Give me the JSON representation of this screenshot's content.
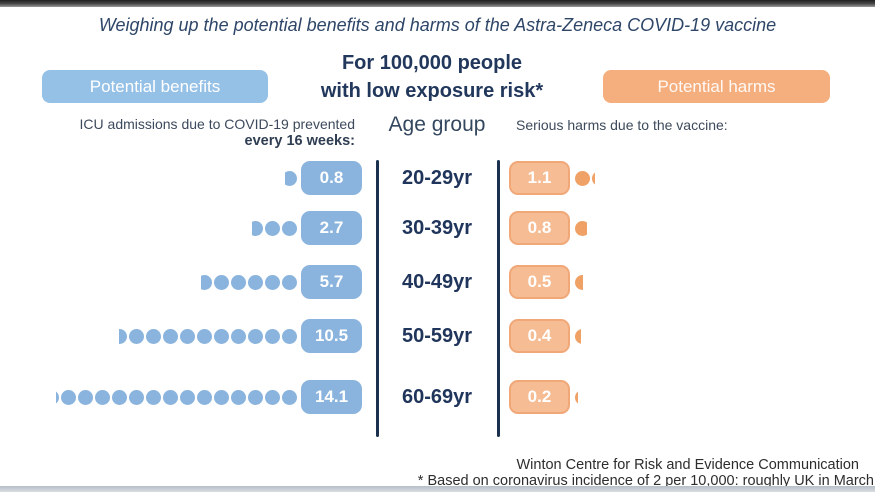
{
  "title": "Weighing up the potential benefits and harms of the Astra-Zeneca COVID-19 vaccine",
  "center_heading": {
    "line1": "For 100,000 people",
    "line2": "with low exposure risk*"
  },
  "legend": {
    "benefits_label": "Potential benefits",
    "harms_label": "Potential harms"
  },
  "columns": {
    "benefits_header_line1": "ICU admissions due to COVID-19 prevented",
    "benefits_header_line2": "every 16 weeks:",
    "age_header": "Age group",
    "harms_header": "Serious harms due to the vaccine:"
  },
  "footer": {
    "credit": "Winton Centre for Risk and Evidence Communication",
    "footnote": "* Based on coronavirus incidence of 2 per 10,000: roughly UK in March"
  },
  "colors": {
    "benefit_blue": "#8ab4dd",
    "benefit_button_blue": "#96c1e7",
    "harm_orange_dot": "#f0a166",
    "harm_box_fill": "#f6bc93",
    "harm_box_border": "#f1a878",
    "harm_button_orange": "#f5ae7d",
    "navy_text": "#22375c",
    "divider_navy": "#1c3050"
  },
  "chart_data": {
    "type": "bar",
    "variant": "pictogram",
    "title": "For 100,000 people with low exposure risk*",
    "categories": [
      "20-29yr",
      "30-39yr",
      "40-49yr",
      "50-59yr",
      "60-69yr"
    ],
    "series": [
      {
        "name": "ICU admissions due to COVID-19 prevented every 16 weeks",
        "side": "benefits",
        "color": "#8ab4dd",
        "values": [
          0.8,
          2.7,
          5.7,
          10.5,
          14.1
        ]
      },
      {
        "name": "Serious harms due to the vaccine",
        "side": "harms",
        "color": "#f0a166",
        "values": [
          1.1,
          0.8,
          0.5,
          0.4,
          0.2
        ]
      }
    ],
    "legend_position": "top",
    "grid": false
  }
}
